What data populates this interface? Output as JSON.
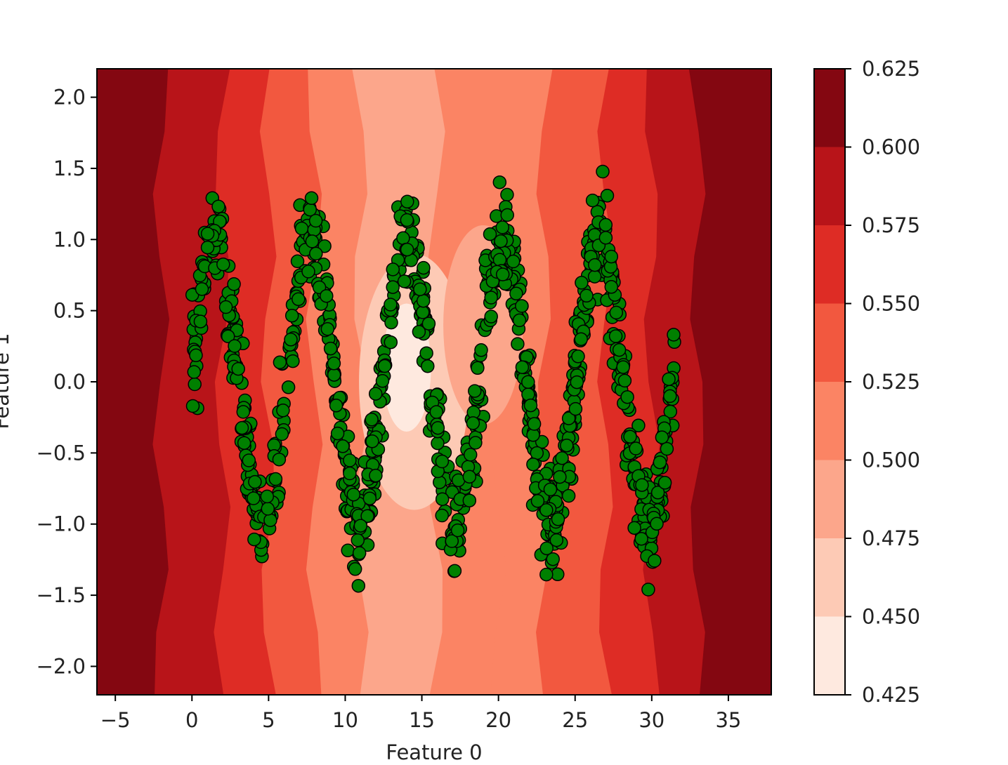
{
  "chart_data": {
    "type": "scatter",
    "subtype": "filled-contour background with scatter overlay",
    "title": "",
    "xlabel": "Feature 0",
    "ylabel": "Feature 1",
    "xlim": [
      -6.2,
      37.8
    ],
    "ylim": [
      -2.2,
      2.2
    ],
    "x_ticks": [
      -5,
      0,
      5,
      10,
      15,
      20,
      25,
      30,
      35
    ],
    "x_tick_labels": [
      "−5",
      "0",
      "5",
      "10",
      "15",
      "20",
      "25",
      "30",
      "35"
    ],
    "y_ticks": [
      2.0,
      1.5,
      1.0,
      0.5,
      0.0,
      -0.5,
      -1.0,
      -1.5,
      -2.0
    ],
    "y_tick_labels": [
      "2.0",
      "1.5",
      "1.0",
      "0.5",
      "0.0",
      "−0.5",
      "−1.0",
      "−1.5",
      "−2.0"
    ],
    "grid": false,
    "colormap": "Reds",
    "colorbar": {
      "levels": [
        0.425,
        0.45,
        0.475,
        0.5,
        0.525,
        0.55,
        0.575,
        0.6,
        0.625
      ],
      "tick_labels": [
        "0.425",
        "0.450",
        "0.475",
        "0.500",
        "0.525",
        "0.550",
        "0.575",
        "0.600",
        "0.625"
      ],
      "colors": [
        "#fee9df",
        "#fdcab5",
        "#fca68b",
        "#fb8464",
        "#f2583f",
        "#de2c25",
        "#b81419",
        "#840711"
      ]
    },
    "contour_bands_by_x": [
      {
        "x_from": -6.2,
        "x_to": -2,
        "value_band": 7
      },
      {
        "x_from": -2,
        "x_to": 2,
        "value_band": 6
      },
      {
        "x_from": 2,
        "x_to": 5,
        "value_band": 5
      },
      {
        "x_from": 5,
        "x_to": 8,
        "value_band": 4
      },
      {
        "x_from": 8,
        "x_to": 11,
        "value_band": 3
      },
      {
        "x_from": 11,
        "x_to": 16,
        "value_band": 2
      },
      {
        "x_from": 16,
        "x_to": 20,
        "value_band": 3
      },
      {
        "x_from": 20,
        "x_to": 23,
        "value_band": 3
      },
      {
        "x_from": 23,
        "x_to": 27,
        "value_band": 4
      },
      {
        "x_from": 27,
        "x_to": 30,
        "value_band": 5
      },
      {
        "x_from": 30,
        "x_to": 33,
        "value_band": 6
      },
      {
        "x_from": 33,
        "x_to": 37.8,
        "value_band": 7
      }
    ],
    "scatter": {
      "marker_color": "#008000",
      "edge_color": "#000000",
      "description_of_shape": "noisy sine wave",
      "x_range": [
        0,
        31.5
      ],
      "period": 6.28,
      "amplitude": 1.0,
      "noise": 0.3,
      "point_count": 1000
    }
  }
}
